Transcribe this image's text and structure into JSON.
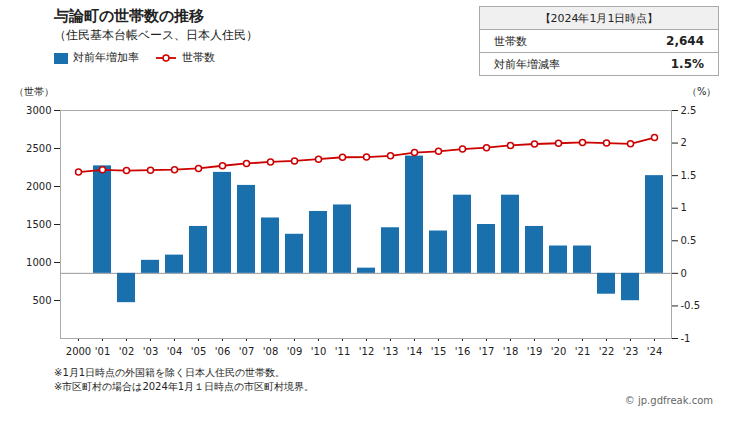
{
  "chart_data": {
    "type": "bar",
    "title": "与論町の世帯数の推移",
    "subtitle": "（住民基本台帳ベース、日本人住民）",
    "categories": [
      "2000",
      "'01",
      "'02",
      "'03",
      "'04",
      "'05",
      "'06",
      "'07",
      "'08",
      "'09",
      "'10",
      "'11",
      "'12",
      "'13",
      "'14",
      "'15",
      "'16",
      "'17",
      "'18",
      "'19",
      "'20",
      "'21",
      "'22",
      "'23",
      "'24"
    ],
    "series": [
      {
        "name": "対前年増加率",
        "type": "bar",
        "axis": "y2",
        "color": "#1a6fad",
        "values": [
          null,
          1.65,
          -0.45,
          0.2,
          0.28,
          0.72,
          1.55,
          1.35,
          0.85,
          0.6,
          0.95,
          1.05,
          0.08,
          0.7,
          1.8,
          0.65,
          1.2,
          0.75,
          1.2,
          0.72,
          0.42,
          0.42,
          -0.32,
          -0.42,
          1.5
        ]
      },
      {
        "name": "世帯数",
        "type": "line",
        "color": "#cc0000",
        "marker": "o",
        "values": [
          2190,
          2220,
          2210,
          2215,
          2221,
          2238,
          2273,
          2303,
          2323,
          2337,
          2360,
          2385,
          2387,
          2404,
          2447,
          2463,
          2492,
          2511,
          2541,
          2559,
          2569,
          2580,
          2572,
          2561,
          2644
        ]
      }
    ],
    "ylabel": "（世帯）",
    "y2label": "（%）",
    "ylim": [
      0,
      3000
    ],
    "yticks": [
      500,
      1000,
      1500,
      2000,
      2500,
      3000
    ],
    "y2lim": [
      -1.0,
      2.5
    ],
    "y2ticks": [
      -1,
      -0.5,
      0,
      0.5,
      1,
      1.5,
      2,
      2.5
    ],
    "grid": false,
    "legend": "top",
    "annotations": [
      "【2024年1月1日時点】",
      "世帯数",
      "2,644",
      "対前年増減率",
      "1.5%",
      "※1月1日時点の外国籍を除く日本人住民の世帯数。",
      "※市区町村の場合は2024年1月１日時点の市区町村境界。",
      "© jp.gdfreak.com"
    ]
  }
}
